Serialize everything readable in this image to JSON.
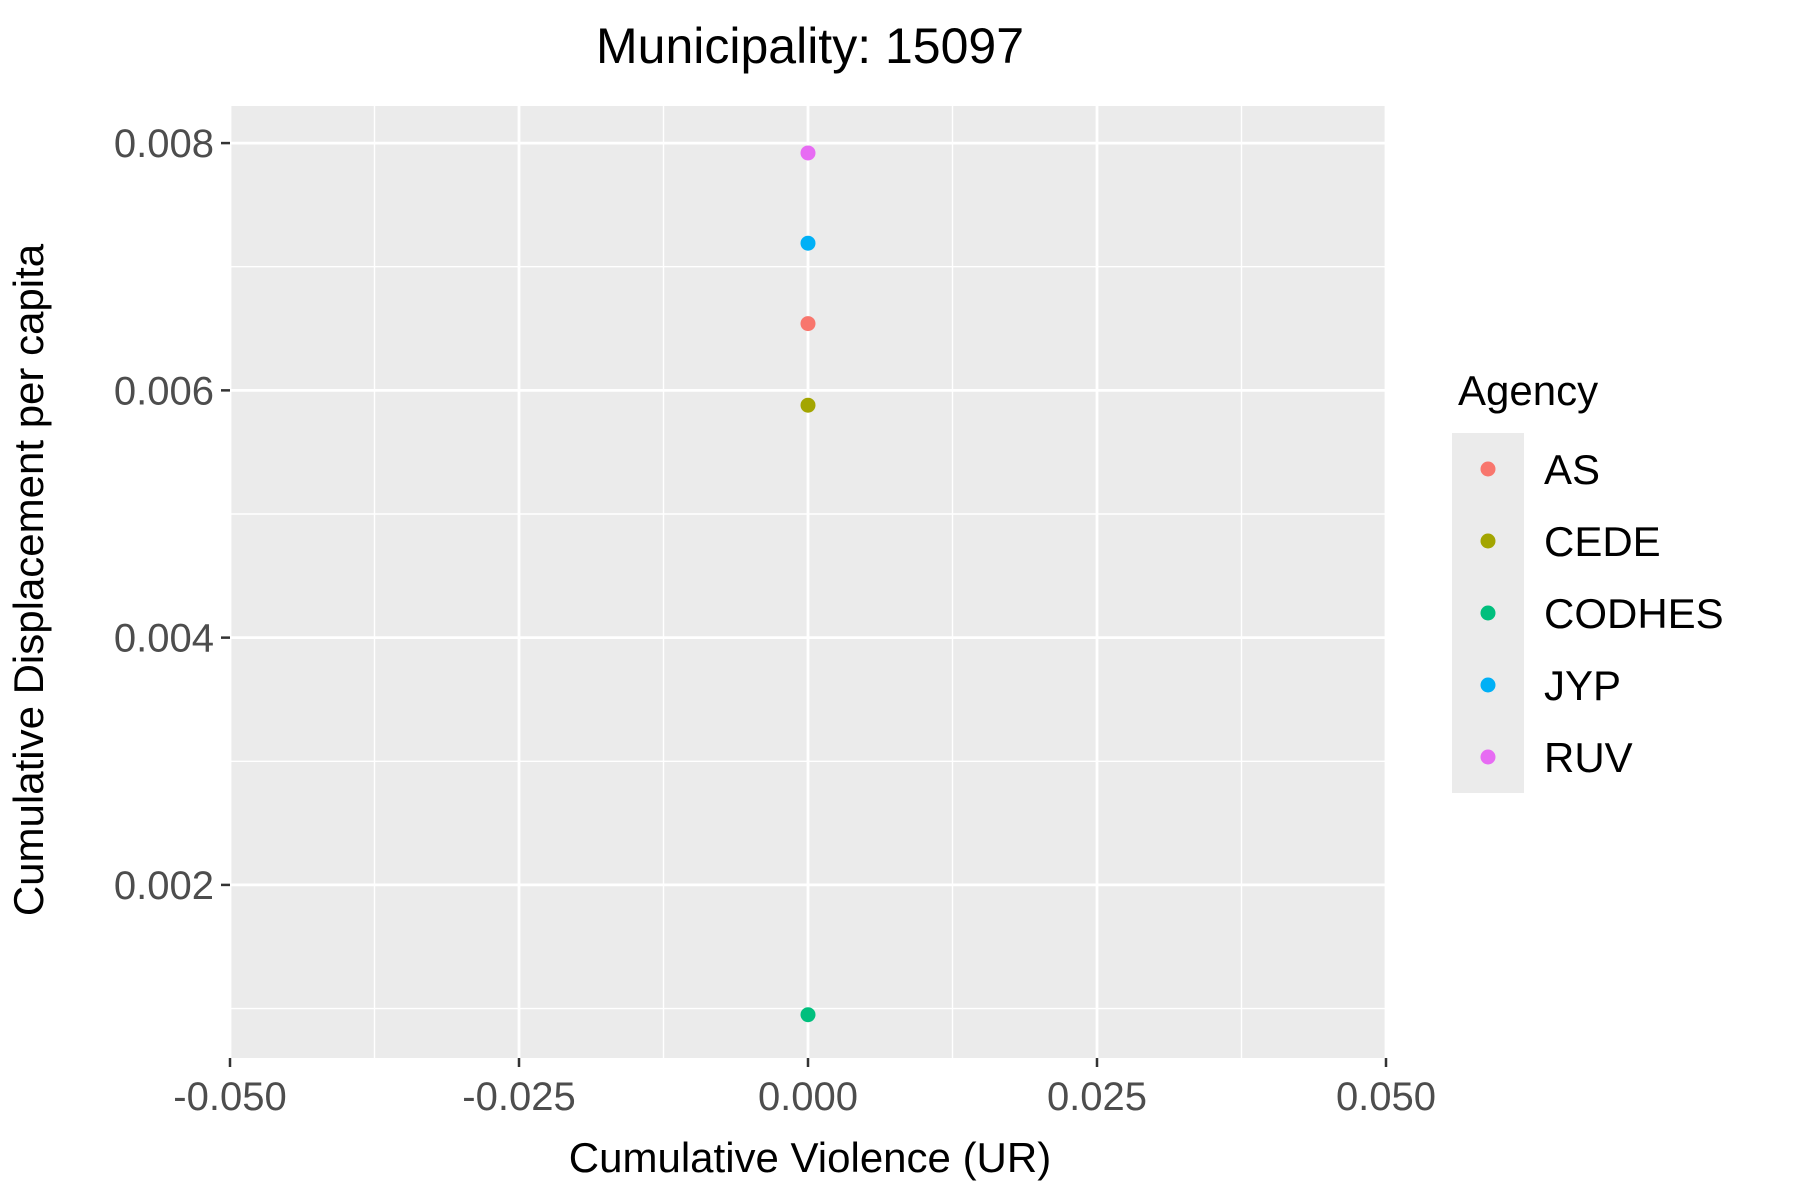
{
  "chart_data": {
    "type": "scatter",
    "title": "Municipality: 15097",
    "xlabel": "Cumulative Violence (UR)",
    "ylabel": "Cumulative Displacement per capita",
    "xlim": [
      -0.05,
      0.05
    ],
    "ylim": [
      0.0006,
      0.0083
    ],
    "x_ticks": [
      -0.05,
      -0.025,
      0,
      0.025,
      0.05
    ],
    "x_tick_labels": [
      "-0.050",
      "-0.025",
      "0.000",
      "0.025",
      "0.050"
    ],
    "y_ticks": [
      0.002,
      0.004,
      0.006,
      0.008
    ],
    "y_tick_labels": [
      "0.002",
      "0.004",
      "0.006",
      "0.008"
    ],
    "grid": true,
    "panel_background": "#ebebeb",
    "legend": {
      "title": "Agency",
      "placement": "right"
    },
    "series": [
      {
        "name": "AS",
        "color": "#F8766D",
        "points": [
          {
            "x": 0,
            "y": 0.00654
          }
        ]
      },
      {
        "name": "CEDE",
        "color": "#A3A500",
        "points": [
          {
            "x": 0,
            "y": 0.00588
          }
        ]
      },
      {
        "name": "CODHES",
        "color": "#00BF7D",
        "points": [
          {
            "x": 0,
            "y": 0.00095
          }
        ]
      },
      {
        "name": "JYP",
        "color": "#00B0F6",
        "points": [
          {
            "x": 0,
            "y": 0.00719
          }
        ]
      },
      {
        "name": "RUV",
        "color": "#E76BF3",
        "points": [
          {
            "x": 0,
            "y": 0.00792
          }
        ]
      }
    ]
  }
}
